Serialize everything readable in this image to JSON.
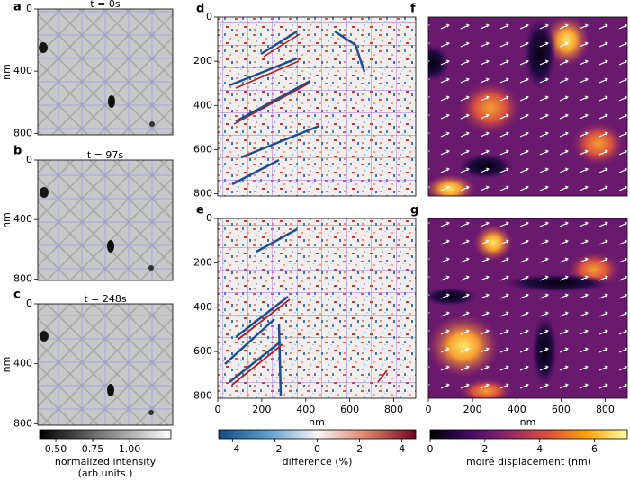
{
  "chart_data": [
    {
      "type": "image",
      "label": "a",
      "title": "t = 0s",
      "ylabel": "nm",
      "colormap": "gray",
      "ylim": [
        0,
        810
      ],
      "yticks": [
        0,
        400,
        800
      ],
      "yinvert": true
    },
    {
      "type": "image",
      "label": "b",
      "title": "t = 97s",
      "ylabel": "nm",
      "colormap": "gray",
      "ylim": [
        0,
        810
      ],
      "yticks": [
        0,
        400,
        800
      ],
      "yinvert": true
    },
    {
      "type": "image",
      "label": "c",
      "title": "t = 248s",
      "ylabel": "nm",
      "colormap": "gray",
      "ylim": [
        0,
        810
      ],
      "yticks": [
        0,
        400,
        800
      ],
      "yinvert": true
    },
    {
      "type": "image",
      "label": "d",
      "colormap": "RdBu",
      "ylim": [
        0,
        810
      ],
      "yticks": [
        0,
        200,
        400,
        600,
        800
      ],
      "yinvert": true
    },
    {
      "type": "image",
      "label": "e",
      "xlabel": "nm",
      "colormap": "RdBu",
      "xlim": [
        0,
        900
      ],
      "xticks": [
        0,
        200,
        400,
        600,
        800
      ],
      "ylim": [
        0,
        810
      ],
      "yticks": [
        0,
        200,
        400,
        600,
        800
      ],
      "yinvert": true
    },
    {
      "type": "image",
      "label": "f",
      "colormap": "inferno"
    },
    {
      "type": "image",
      "label": "g",
      "xlabel": "nm",
      "colormap": "inferno",
      "xlim": [
        0,
        900
      ],
      "xticks": [
        0,
        200,
        400,
        600,
        800
      ]
    },
    {
      "type": "colorbar",
      "label": [
        "normalized intensity",
        "(arb.units.)"
      ],
      "colors": [
        "#000000",
        "#808080",
        "#ffffff"
      ],
      "xlim": [
        0.39,
        1.28
      ],
      "xticks": [
        {
          "value": 0.5,
          "label": "0.50"
        },
        {
          "value": 0.75,
          "label": "0.75"
        },
        {
          "value": 1.0,
          "label": "1.00"
        }
      ]
    },
    {
      "type": "colorbar",
      "label": [
        "difference (%)"
      ],
      "colors": [
        "#134b87",
        "#5e9ccb",
        "#f7f6f6",
        "#e0826a",
        "#730421"
      ],
      "xlim": [
        -4.65,
        4.65
      ],
      "xticks": [
        {
          "value": -4,
          "label": "−4"
        },
        {
          "value": -2,
          "label": "−2"
        },
        0,
        2,
        4
      ]
    },
    {
      "type": "colorbar",
      "label": [
        "moiré displacement (nm)"
      ],
      "colors": [
        "#000004",
        "#420a68",
        "#932667",
        "#dd513a",
        "#fca50a",
        "#fcffa4"
      ],
      "xlim": [
        0,
        7.2
      ],
      "xticks": [
        0,
        2,
        4,
        6
      ]
    }
  ]
}
